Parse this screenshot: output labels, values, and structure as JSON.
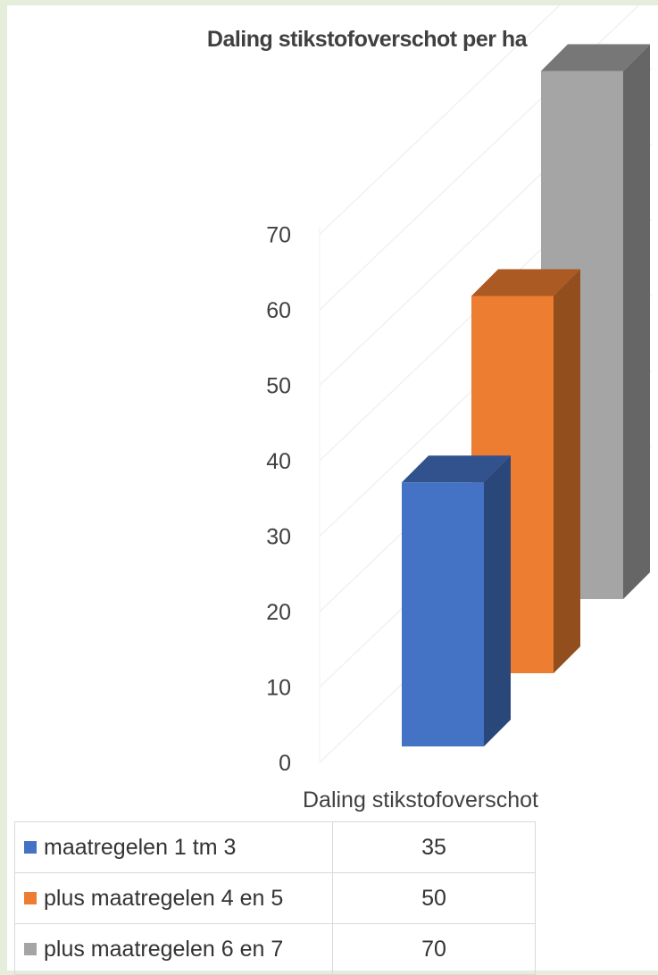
{
  "chart_data": {
    "type": "bar",
    "title": "Daling stikstofoverschot per ha",
    "categories": [
      "Daling stikstofoverschot"
    ],
    "series": [
      {
        "name": "maatregelen 1 tm 3",
        "values": [
          35
        ],
        "color": "#4472c4"
      },
      {
        "name": "plus maatregelen 4 en 5",
        "values": [
          50
        ],
        "color": "#ed7d31"
      },
      {
        "name": "plus maatregelen 6 en 7",
        "values": [
          70
        ],
        "color": "#a5a5a5"
      }
    ],
    "yticks": [
      0,
      10,
      20,
      30,
      40,
      50,
      60,
      70
    ],
    "ylim": [
      0,
      70
    ],
    "grid": true,
    "data_table": true,
    "style": "3d-column"
  }
}
